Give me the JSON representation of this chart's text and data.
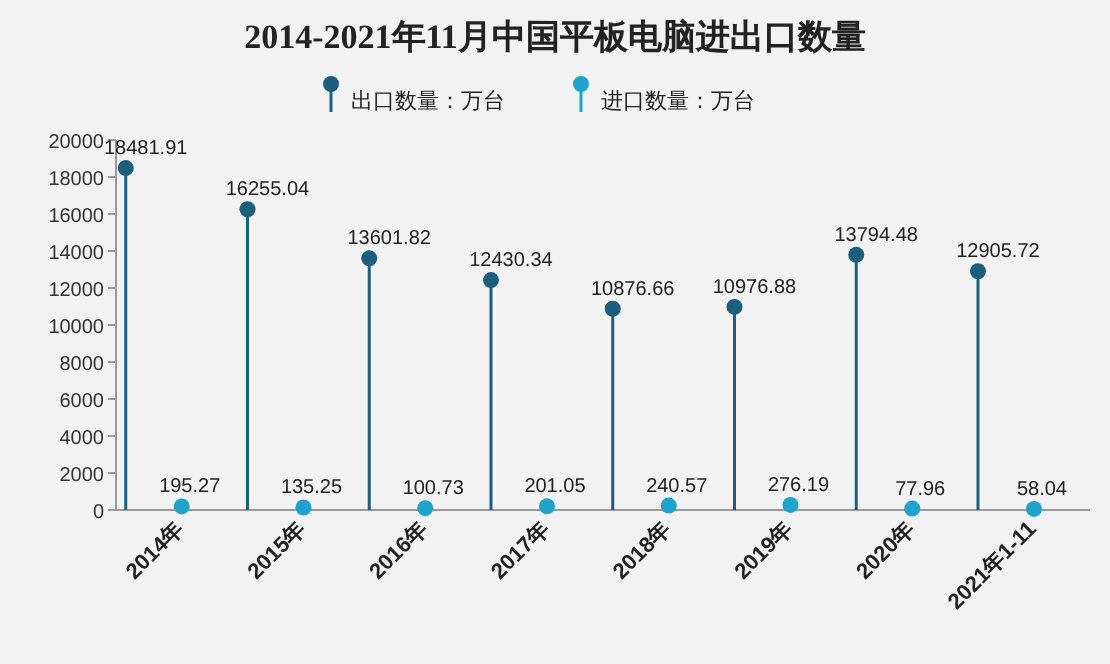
{
  "chart_data": {
    "type": "lollipop",
    "title": "2014-2021年11月中国平板电脑进出口数量",
    "categories": [
      "2014年",
      "2015年",
      "2016年",
      "2017年",
      "2018年",
      "2019年",
      "2020年",
      "2021年1-11"
    ],
    "series": [
      {
        "name": "出口数量：万台",
        "color": "#1b5f7c",
        "values": [
          18481.91,
          16255.04,
          13601.82,
          12430.34,
          10876.66,
          10976.88,
          13794.48,
          12905.72
        ]
      },
      {
        "name": "进口数量：万台",
        "color": "#1fa3cc",
        "values": [
          195.27,
          135.25,
          100.73,
          201.05,
          240.57,
          276.19,
          77.96,
          58.04
        ]
      }
    ],
    "ylim": [
      0,
      20000
    ],
    "yticks": [
      0,
      2000,
      4000,
      6000,
      8000,
      10000,
      12000,
      14000,
      16000,
      18000,
      20000
    ],
    "data_labels": true,
    "legend": "top",
    "marker": "circle"
  }
}
